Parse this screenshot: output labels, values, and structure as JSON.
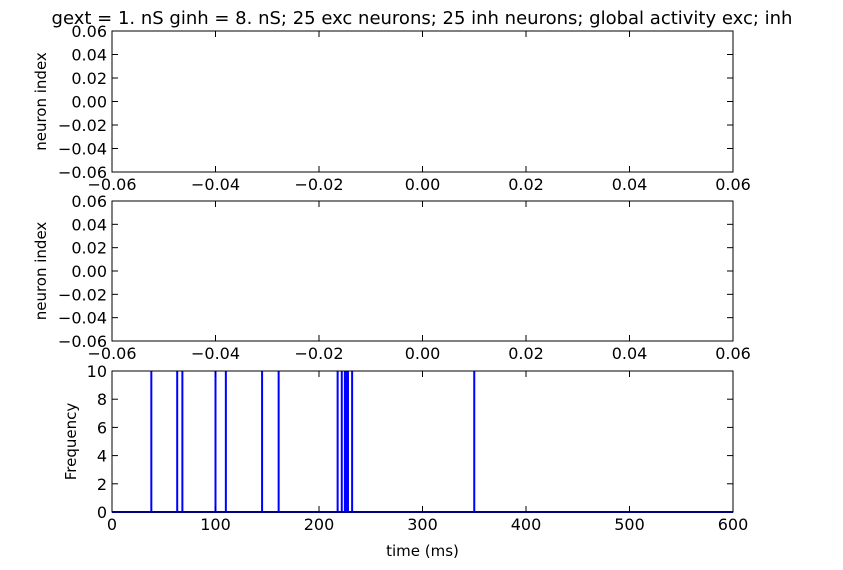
{
  "title": "gext = 1. nS ginh = 8. nS; 25 exc neurons; 25 inh neurons; global activity exc; inh",
  "colors": {
    "axes": "#000000",
    "line": "#0000ff",
    "background": "#ffffff"
  },
  "chart_data": [
    {
      "type": "scatter",
      "ylabel": "neuron index",
      "xlabel": "",
      "xlim": [
        -0.06,
        0.06
      ],
      "ylim": [
        -0.06,
        0.06
      ],
      "xticks": [
        "−0.06",
        "−0.04",
        "−0.02",
        "0.00",
        "0.02",
        "0.04",
        "0.06"
      ],
      "yticks": [
        "−0.06",
        "−0.04",
        "−0.02",
        "0.00",
        "0.02",
        "0.04",
        "0.06"
      ],
      "points": []
    },
    {
      "type": "scatter",
      "ylabel": "neuron index",
      "xlabel": "",
      "xlim": [
        -0.06,
        0.06
      ],
      "ylim": [
        -0.06,
        0.06
      ],
      "xticks": [
        "−0.06",
        "−0.04",
        "−0.02",
        "0.00",
        "0.02",
        "0.04",
        "0.06"
      ],
      "yticks": [
        "−0.06",
        "−0.04",
        "−0.02",
        "0.00",
        "0.02",
        "0.04",
        "0.06"
      ],
      "points": []
    },
    {
      "type": "line",
      "ylabel": "Frequency",
      "xlabel": "time (ms)",
      "xlim": [
        0,
        600
      ],
      "ylim": [
        0,
        10
      ],
      "xticks": [
        "0",
        "100",
        "200",
        "300",
        "400",
        "500",
        "600"
      ],
      "yticks": [
        "0",
        "2",
        "4",
        "6",
        "8",
        "10"
      ],
      "spike_times": [
        38,
        63,
        68,
        100,
        110,
        145,
        161,
        218,
        222,
        225,
        226,
        227,
        228,
        232,
        350
      ],
      "spike_height": 10,
      "baseline": 0
    }
  ]
}
